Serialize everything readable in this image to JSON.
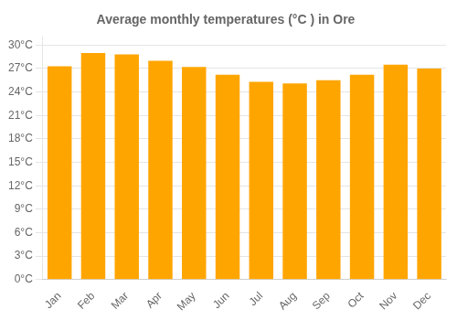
{
  "chart_data": {
    "type": "bar",
    "title": "Average monthly temperatures (°C ) in Ore",
    "categories": [
      "Jan",
      "Feb",
      "Mar",
      "Apr",
      "May",
      "Jun",
      "Jul",
      "Aug",
      "Sep",
      "Oct",
      "Nov",
      "Dec"
    ],
    "values": [
      27.3,
      29.0,
      28.8,
      28.0,
      27.2,
      26.2,
      25.3,
      25.1,
      25.5,
      26.2,
      27.5,
      27.0
    ],
    "color": "#FFA500",
    "ylim": [
      0,
      31
    ],
    "yticks": [
      {
        "value": 0,
        "label": "0°C"
      },
      {
        "value": 3,
        "label": "3°C"
      },
      {
        "value": 6,
        "label": "6°C"
      },
      {
        "value": 9,
        "label": "9°C"
      },
      {
        "value": 12,
        "label": "12°C"
      },
      {
        "value": 15,
        "label": "15°C"
      },
      {
        "value": 18,
        "label": "18°C"
      },
      {
        "value": 21,
        "label": "21°C"
      },
      {
        "value": 24,
        "label": "24°C"
      },
      {
        "value": 27,
        "label": "27°C"
      },
      {
        "value": 30,
        "label": "30°C"
      }
    ],
    "grid": true
  }
}
